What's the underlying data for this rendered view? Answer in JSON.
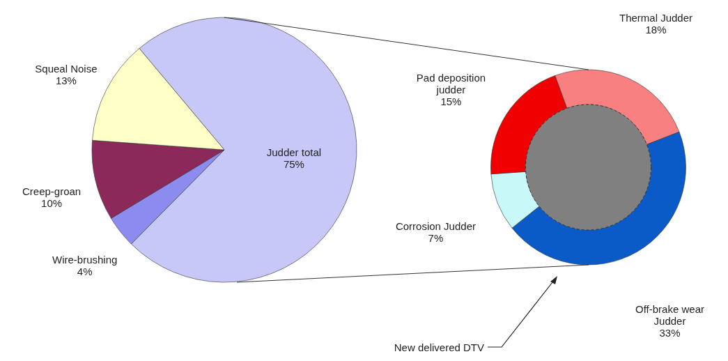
{
  "chart_data": [
    {
      "type": "pie",
      "categories": [
        "Judder total",
        "Wire-brushing",
        "Creep-groan",
        "Squeal Noise"
      ],
      "values": [
        75,
        4,
        10,
        13
      ],
      "value_labels": [
        "75%",
        "4%",
        "10%",
        "13%"
      ],
      "colors": [
        "#c8c8f8",
        "#8c8cf0",
        "#8b2a5a",
        "#ffffc8"
      ]
    },
    {
      "type": "donut",
      "categories": [
        "Thermal Judder",
        "Off-brake wear\nJudder",
        "Corrosion Judder",
        "Pad deposition\njudder"
      ],
      "values": [
        18,
        33,
        7,
        15
      ],
      "value_labels": [
        "18%",
        "33%",
        "7%",
        "15%"
      ],
      "colors": [
        "#f88080",
        "#0a5ac8",
        "#c8f8f8",
        "#f00000"
      ],
      "annotations": [
        "New delivered DTV"
      ]
    }
  ]
}
